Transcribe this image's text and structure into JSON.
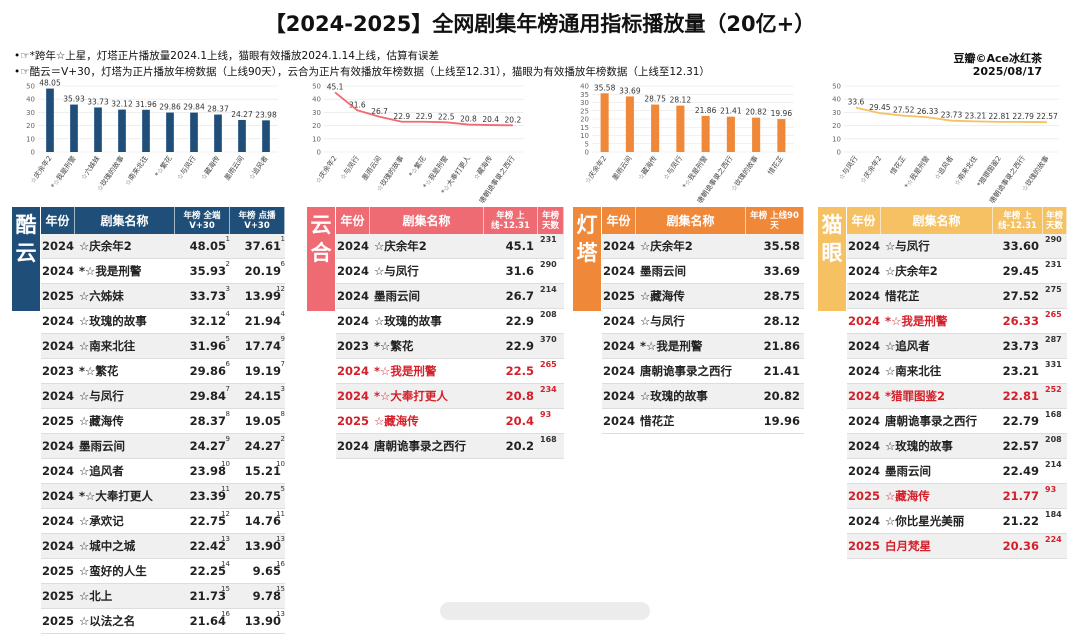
{
  "header": {
    "title": "【2024-2025】全网剧集年榜通用指标播放量（20亿+）",
    "note1": "•☞*跨年☆上星，灯塔正片播放量2024.1上线，猫眼有效播放2024.1.14上线，估算有误差",
    "note2": "•☞酷云＝V+30，灯塔为正片播放年榜数据（上线90天），云合为正片有效播放年榜数据（上线至12.31），猫眼为有效播放年榜数据（上线至12.31）",
    "credit": "豆瓣©Ace冰红茶",
    "date": "2025/08/17"
  },
  "chart_data": [
    {
      "type": "bar",
      "platform": "酷云",
      "color": "#1f4e79",
      "categories": [
        "☆庆余年2",
        "*☆我是刑警",
        "☆六姊妹",
        "☆玫瑰的故事",
        "☆南来北往",
        "*☆繁花",
        "☆与凤行",
        "☆藏海传",
        "墨雨云间",
        "☆追风者"
      ],
      "values": [
        48.05,
        35.93,
        33.73,
        32.12,
        31.96,
        29.86,
        29.84,
        28.37,
        24.27,
        23.98
      ],
      "ylim": [
        0,
        50
      ],
      "yticks": [
        0,
        10,
        20,
        30,
        40,
        50
      ]
    },
    {
      "type": "line",
      "platform": "云合",
      "color": "#ee6b73",
      "categories": [
        "☆庆余年2",
        "☆与凤行",
        "墨雨云间",
        "☆玫瑰的故事",
        "*☆繁花",
        "*☆我是刑警",
        "*☆大奉打更人",
        "☆藏海传",
        "唐朝诡事录之西行"
      ],
      "values": [
        45.1,
        31.6,
        26.7,
        22.9,
        22.9,
        22.5,
        20.8,
        20.4,
        20.2
      ],
      "ylim": [
        0,
        50
      ],
      "yticks": [
        0,
        10,
        20,
        30,
        40,
        50
      ]
    },
    {
      "type": "bar",
      "platform": "灯塔",
      "color": "#f0883a",
      "categories": [
        "☆庆余年2",
        "墨雨云间",
        "☆藏海传",
        "☆与凤行",
        "*☆我是刑警",
        "唐朝诡事录之西行",
        "☆玫瑰的故事",
        "惜花芷"
      ],
      "values": [
        35.58,
        33.69,
        28.75,
        28.12,
        21.86,
        21.41,
        20.82,
        19.96
      ],
      "ylim": [
        0,
        40
      ],
      "yticks": [
        0,
        5,
        10,
        15,
        20,
        25,
        30,
        35,
        40
      ]
    },
    {
      "type": "line",
      "platform": "猫眼",
      "color": "#f5c162",
      "categories": [
        "☆与凤行",
        "☆庆余年2",
        "惜花芷",
        "*☆我是刑警",
        "☆追风者",
        "☆南来北往",
        "*猎罪图鉴2",
        "唐朝诡事录之西行",
        "☆玫瑰的故事"
      ],
      "values": [
        33.6,
        29.45,
        27.52,
        26.33,
        23.73,
        23.21,
        22.81,
        22.79,
        22.57
      ],
      "ylim": [
        0,
        50
      ],
      "yticks": [
        0,
        10,
        20,
        30,
        40,
        50
      ]
    },
    {
      "type": "table",
      "platform": "酷云",
      "side_label": [
        "酷",
        "云"
      ],
      "columns": [
        "年份",
        "剧集名称",
        "年榜 全端V+30",
        "年榜 点播V+30"
      ],
      "rows": [
        {
          "year": "2024",
          "name": "☆庆余年2",
          "v1": "48.05",
          "r1": "1",
          "v2": "37.61",
          "r2": "1"
        },
        {
          "year": "2024",
          "name": "*☆我是刑警",
          "v1": "35.93",
          "r1": "2",
          "v2": "20.19",
          "r2": "6"
        },
        {
          "year": "2025",
          "name": "☆六姊妹",
          "v1": "33.73",
          "r1": "3",
          "v2": "13.99",
          "r2": "12"
        },
        {
          "year": "2024",
          "name": "☆玫瑰的故事",
          "v1": "32.12",
          "r1": "4",
          "v2": "21.94",
          "r2": "4"
        },
        {
          "year": "2024",
          "name": "☆南来北往",
          "v1": "31.96",
          "r1": "5",
          "v2": "17.74",
          "r2": "9"
        },
        {
          "year": "2023",
          "name": "*☆繁花",
          "v1": "29.86",
          "r1": "6",
          "v2": "19.19",
          "r2": "7"
        },
        {
          "year": "2024",
          "name": "☆与凤行",
          "v1": "29.84",
          "r1": "7",
          "v2": "24.15",
          "r2": "3"
        },
        {
          "year": "2025",
          "name": "☆藏海传",
          "v1": "28.37",
          "r1": "8",
          "v2": "19.05",
          "r2": "8"
        },
        {
          "year": "2024",
          "name": "墨雨云间",
          "v1": "24.27",
          "r1": "9",
          "v2": "24.27",
          "r2": "2"
        },
        {
          "year": "2024",
          "name": "☆追风者",
          "v1": "23.98",
          "r1": "10",
          "v2": "15.21",
          "r2": "10"
        },
        {
          "year": "2024",
          "name": "*☆大奉打更人",
          "v1": "23.39",
          "r1": "11",
          "v2": "20.75",
          "r2": "5"
        },
        {
          "year": "2024",
          "name": "☆承欢记",
          "v1": "22.75",
          "r1": "12",
          "v2": "14.76",
          "r2": "11"
        },
        {
          "year": "2024",
          "name": "☆城中之城",
          "v1": "22.42",
          "r1": "13",
          "v2": "13.90",
          "r2": "13"
        },
        {
          "year": "2025",
          "name": "☆蛮好的人生",
          "v1": "22.25",
          "r1": "14",
          "v2": "9.65",
          "r2": "16"
        },
        {
          "year": "2025",
          "name": "☆北上",
          "v1": "21.73",
          "r1": "15",
          "v2": "9.78",
          "r2": "15"
        },
        {
          "year": "2025",
          "name": "☆以法之名",
          "v1": "21.64",
          "r1": "16",
          "v2": "13.90",
          "r2": "13"
        }
      ]
    },
    {
      "type": "table",
      "platform": "云合",
      "side_label": [
        "云",
        "合"
      ],
      "columns": [
        "年份",
        "剧集名称",
        "年榜 上线-12.31",
        "年榜 天数"
      ],
      "rows": [
        {
          "year": "2024",
          "name": "☆庆余年2",
          "value": "45.1",
          "days": "231",
          "red": false
        },
        {
          "year": "2024",
          "name": "☆与凤行",
          "value": "31.6",
          "days": "290",
          "red": false
        },
        {
          "year": "2024",
          "name": "墨雨云间",
          "value": "26.7",
          "days": "214",
          "red": false
        },
        {
          "year": "2024",
          "name": "☆玫瑰的故事",
          "value": "22.9",
          "days": "208",
          "red": false
        },
        {
          "year": "2023",
          "name": "*☆繁花",
          "value": "22.9",
          "days": "370",
          "red": false
        },
        {
          "year": "2024",
          "name": "*☆我是刑警",
          "value": "22.5",
          "days": "265",
          "red": true
        },
        {
          "year": "2024",
          "name": "*☆大奉打更人",
          "value": "20.8",
          "days": "234",
          "red": true
        },
        {
          "year": "2025",
          "name": "☆藏海传",
          "value": "20.4",
          "days": "93",
          "red": true
        },
        {
          "year": "2024",
          "name": "唐朝诡事录之西行",
          "value": "20.2",
          "days": "168",
          "red": false
        }
      ]
    },
    {
      "type": "table",
      "platform": "灯塔",
      "side_label": [
        "灯",
        "塔"
      ],
      "columns": [
        "年份",
        "剧集名称",
        "年榜 上线90天"
      ],
      "rows": [
        {
          "year": "2024",
          "name": "☆庆余年2",
          "value": "35.58"
        },
        {
          "year": "2024",
          "name": "墨雨云间",
          "value": "33.69"
        },
        {
          "year": "2025",
          "name": "☆藏海传",
          "value": "28.75"
        },
        {
          "year": "2024",
          "name": "☆与凤行",
          "value": "28.12"
        },
        {
          "year": "2024",
          "name": "*☆我是刑警",
          "value": "21.86"
        },
        {
          "year": "2024",
          "name": "唐朝诡事录之西行",
          "value": "21.41"
        },
        {
          "year": "2024",
          "name": "☆玫瑰的故事",
          "value": "20.82"
        },
        {
          "year": "2024",
          "name": "惜花芷",
          "value": "19.96"
        }
      ]
    },
    {
      "type": "table",
      "platform": "猫眼",
      "side_label": [
        "猫",
        "眼"
      ],
      "columns": [
        "年份",
        "剧集名称",
        "年榜 上线-12.31",
        "年榜 天数"
      ],
      "rows": [
        {
          "year": "2024",
          "name": "☆与凤行",
          "value": "33.60",
          "days": "290",
          "red": false
        },
        {
          "year": "2024",
          "name": "☆庆余年2",
          "value": "29.45",
          "days": "231",
          "red": false
        },
        {
          "year": "2024",
          "name": "惜花芷",
          "value": "27.52",
          "days": "275",
          "red": false
        },
        {
          "year": "2024",
          "name": "*☆我是刑警",
          "value": "26.33",
          "days": "265",
          "red": true
        },
        {
          "year": "2024",
          "name": "☆追风者",
          "value": "23.73",
          "days": "287",
          "red": false
        },
        {
          "year": "2024",
          "name": "☆南来北往",
          "value": "23.21",
          "days": "331",
          "red": false
        },
        {
          "year": "2024",
          "name": "*猎罪图鉴2",
          "value": "22.81",
          "days": "252",
          "red": true
        },
        {
          "year": "2024",
          "name": "唐朝诡事录之西行",
          "value": "22.79",
          "days": "168",
          "red": false
        },
        {
          "year": "2024",
          "name": "☆玫瑰的故事",
          "value": "22.57",
          "days": "208",
          "red": false
        },
        {
          "year": "2024",
          "name": "墨雨云间",
          "value": "22.49",
          "days": "214",
          "red": false
        },
        {
          "year": "2025",
          "name": "☆藏海传",
          "value": "21.77",
          "days": "93",
          "red": true
        },
        {
          "year": "2024",
          "name": "☆你比星光美丽",
          "value": "21.22",
          "days": "184",
          "red": false
        },
        {
          "year": "2025",
          "name": "白月梵星",
          "value": "20.36",
          "days": "224",
          "red": true
        }
      ]
    }
  ]
}
